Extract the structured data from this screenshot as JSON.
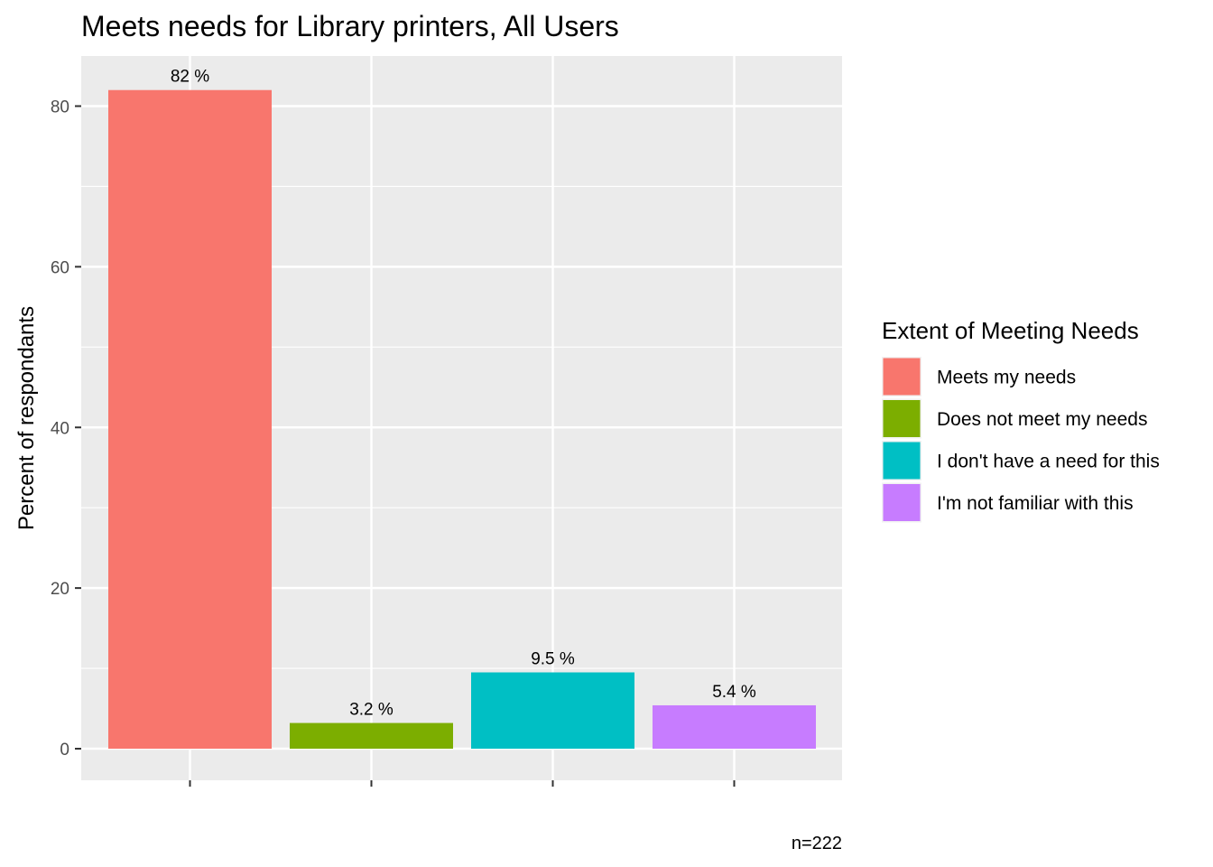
{
  "chart_data": {
    "type": "bar",
    "title": "Meets needs for Library printers, All Users",
    "xlabel": "",
    "ylabel": "Percent of respondants",
    "ylim": [
      0,
      86
    ],
    "yticks": [
      0,
      20,
      40,
      60,
      80
    ],
    "grid": true,
    "legend_position": "right",
    "legend_title": "Extent of Meeting Needs",
    "categories": [
      "Meets my needs",
      "Does not meet my needs",
      "I don't have a need for this",
      "I'm not familiar with this"
    ],
    "values": [
      82,
      3.2,
      9.5,
      5.4
    ],
    "data_labels": [
      "82 %",
      "3.2 %",
      "9.5 %",
      "5.4 %"
    ],
    "colors": [
      "#F8766D",
      "#7CAE00",
      "#00BFC4",
      "#C77CFF"
    ],
    "caption": "n=222"
  }
}
